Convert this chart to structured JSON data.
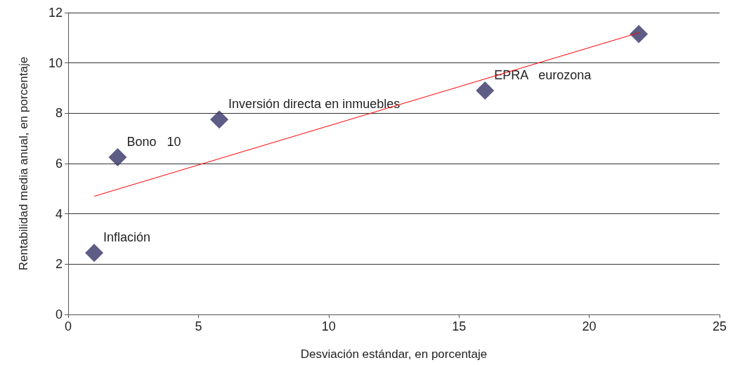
{
  "chart_data": {
    "type": "scatter",
    "xlabel": "Desviación estándar, en porcentaje",
    "ylabel": "Rentabilidad media anual, en porcentaje",
    "series": [
      {
        "color": "#333366",
        "marker": "diamond",
        "x": [
          1.0,
          1.9,
          5.8,
          16.0,
          21.9
        ],
        "values": [
          2.45,
          6.25,
          7.75,
          8.9,
          11.15
        ]
      },
      {
        "type": "line",
        "color": "#ff0000",
        "marker": "none",
        "x": [
          1.0,
          21.9
        ],
        "values": [
          4.7,
          11.2
        ]
      }
    ],
    "annotations": [
      {
        "text": "Inflación",
        "x": 1.0,
        "y": 2.45
      },
      {
        "text": "Bono   10",
        "x": 1.9,
        "y": 6.25
      },
      {
        "text": "Inversión directa en inmuebles",
        "x": 5.8,
        "y": 7.75
      },
      {
        "text": "EPRA   eurozona",
        "x": 16.0,
        "y": 8.9
      }
    ],
    "xlim": [
      0,
      25
    ],
    "xticks": [
      0,
      5,
      10,
      15,
      20,
      25
    ],
    "ylim": [
      0,
      12
    ],
    "yticks": [
      0,
      2,
      4,
      6,
      8,
      10,
      12
    ],
    "grid": "y"
  }
}
